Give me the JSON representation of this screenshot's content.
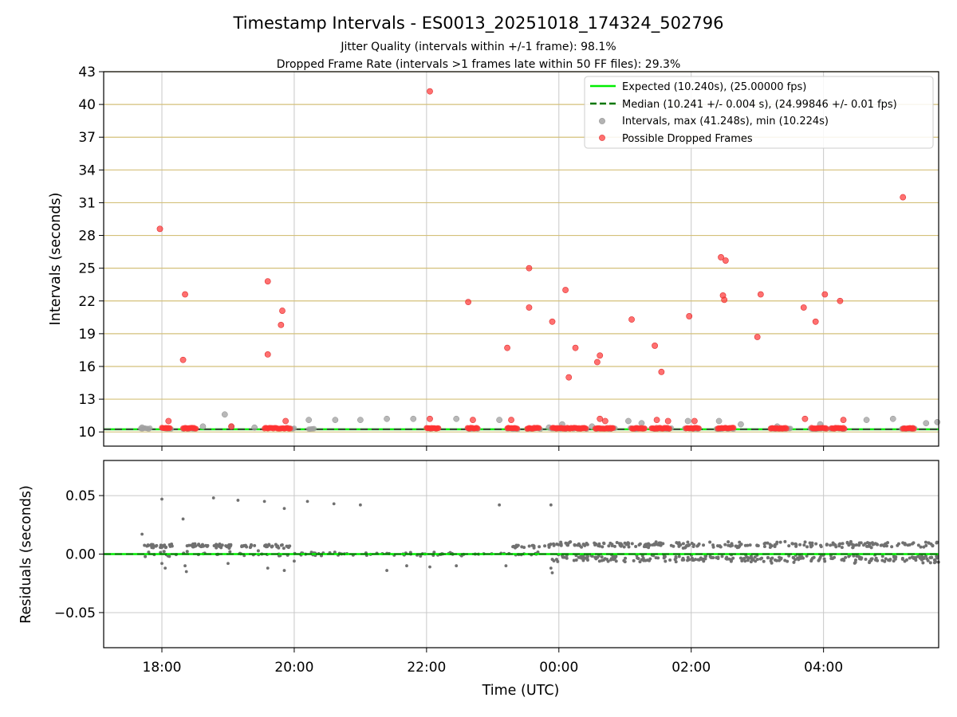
{
  "chart_data": {
    "type": "scatter",
    "title": "Timestamp Intervals - ES0013_20251018_174324_502796",
    "subtitles": [
      "Jitter Quality (intervals within +/-1 frame): 98.1%",
      "Dropped Frame Rate (intervals >1 frames late within 50 FF files): 29.3%"
    ],
    "xlabel": "Time (UTC)",
    "x_unit": "hours since 18:00 UTC",
    "x_range": [
      -0.88,
      11.74
    ],
    "x_ticks": [
      {
        "value": 0,
        "label": "18:00"
      },
      {
        "value": 2,
        "label": "20:00"
      },
      {
        "value": 4,
        "label": "22:00"
      },
      {
        "value": 6,
        "label": "00:00"
      },
      {
        "value": 8,
        "label": "02:00"
      },
      {
        "value": 10,
        "label": "04:00"
      }
    ],
    "colors": {
      "expected": "#00ee00",
      "median": "#007700",
      "intervals": "#a0a0a0",
      "dropped": "#ff3333",
      "residuals": "#707070",
      "gold_grid": "#d4c07a",
      "grey_grid": "#c8c8c8"
    },
    "top_panel": {
      "ylabel": "Intervals (seconds)",
      "ylim": [
        8.7,
        43
      ],
      "y_ticks": [
        10,
        13,
        16,
        19,
        22,
        25,
        28,
        31,
        34,
        37,
        40,
        43
      ],
      "expected_interval": 10.24,
      "median_interval": 10.241,
      "legend": {
        "placement": "top-right",
        "entries": [
          {
            "kind": "line-solid",
            "label": "Expected (10.240s), (25.00000 fps)"
          },
          {
            "kind": "line-dashed",
            "label": "Median (10.241 +/- 0.004 s), (24.99846 +/- 0.01 fps)"
          },
          {
            "kind": "dot-grey",
            "label": "Intervals, max (41.248s), min (10.224s)"
          },
          {
            "kind": "dot-red",
            "label": "Possible Dropped Frames"
          }
        ]
      },
      "baseline_level": 10.24,
      "baseline_clusters": [
        [
          -0.32,
          -0.18
        ],
        [
          0.0,
          0.14
        ],
        [
          0.32,
          0.52
        ],
        [
          1.92,
          2.0
        ],
        [
          2.22,
          2.32
        ],
        [
          4.0,
          4.18
        ],
        [
          4.62,
          4.78
        ],
        [
          5.22,
          5.38
        ],
        [
          5.52,
          5.72
        ],
        [
          5.88,
          6.42
        ],
        [
          6.55,
          6.85
        ],
        [
          7.08,
          7.3
        ],
        [
          7.4,
          7.7
        ],
        [
          7.9,
          8.12
        ],
        [
          8.38,
          8.65
        ],
        [
          9.2,
          9.5
        ],
        [
          9.8,
          10.05
        ],
        [
          10.1,
          10.32
        ],
        [
          11.18,
          11.38
        ]
      ],
      "dropped_clusters": [
        [
          0.0,
          0.12
        ],
        [
          0.32,
          0.52
        ],
        [
          1.55,
          1.95
        ],
        [
          4.0,
          4.18
        ],
        [
          4.62,
          4.78
        ],
        [
          5.22,
          5.38
        ],
        [
          5.52,
          5.7
        ],
        [
          5.9,
          6.42
        ],
        [
          6.55,
          6.82
        ],
        [
          7.1,
          7.3
        ],
        [
          7.4,
          7.68
        ],
        [
          7.92,
          8.12
        ],
        [
          8.4,
          8.65
        ],
        [
          9.2,
          9.45
        ],
        [
          9.82,
          10.05
        ],
        [
          10.12,
          10.32
        ],
        [
          11.2,
          11.38
        ]
      ],
      "intervals": [
        [
          -0.3,
          10.4
        ],
        [
          0.62,
          10.5
        ],
        [
          0.95,
          11.6
        ],
        [
          1.05,
          10.5
        ],
        [
          1.4,
          10.4
        ],
        [
          2.22,
          11.1
        ],
        [
          2.62,
          11.1
        ],
        [
          3.0,
          11.1
        ],
        [
          3.4,
          11.2
        ],
        [
          3.8,
          11.2
        ],
        [
          4.45,
          11.2
        ],
        [
          5.1,
          11.1
        ],
        [
          5.85,
          10.4
        ],
        [
          6.05,
          10.7
        ],
        [
          6.5,
          10.5
        ],
        [
          7.05,
          11.0
        ],
        [
          7.25,
          10.8
        ],
        [
          7.95,
          11.0
        ],
        [
          8.42,
          11.0
        ],
        [
          8.75,
          10.7
        ],
        [
          9.3,
          10.5
        ],
        [
          9.95,
          10.7
        ],
        [
          10.65,
          11.1
        ],
        [
          11.05,
          11.2
        ],
        [
          11.55,
          10.8
        ],
        [
          11.72,
          10.9
        ]
      ],
      "dropped_frames": [
        [
          -0.03,
          28.6
        ],
        [
          0.1,
          11.0
        ],
        [
          0.32,
          16.6
        ],
        [
          0.35,
          22.6
        ],
        [
          1.05,
          10.5
        ],
        [
          1.6,
          23.8
        ],
        [
          1.6,
          17.1
        ],
        [
          1.8,
          19.8
        ],
        [
          1.82,
          21.1
        ],
        [
          1.87,
          11.0
        ],
        [
          4.05,
          41.2
        ],
        [
          4.05,
          11.2
        ],
        [
          4.63,
          21.9
        ],
        [
          4.7,
          11.1
        ],
        [
          5.22,
          17.7
        ],
        [
          5.28,
          11.1
        ],
        [
          5.55,
          25.0
        ],
        [
          5.55,
          21.4
        ],
        [
          5.9,
          20.1
        ],
        [
          6.1,
          23.0
        ],
        [
          6.15,
          15.0
        ],
        [
          6.25,
          17.7
        ],
        [
          6.58,
          16.4
        ],
        [
          6.62,
          17.0
        ],
        [
          6.62,
          11.2
        ],
        [
          6.7,
          11.0
        ],
        [
          7.1,
          20.3
        ],
        [
          7.45,
          17.9
        ],
        [
          7.48,
          11.1
        ],
        [
          7.55,
          15.5
        ],
        [
          7.65,
          11.0
        ],
        [
          7.97,
          20.6
        ],
        [
          8.05,
          11.0
        ],
        [
          8.45,
          26.0
        ],
        [
          8.48,
          22.5
        ],
        [
          8.5,
          22.1
        ],
        [
          8.52,
          25.7
        ],
        [
          9.0,
          18.7
        ],
        [
          9.05,
          22.6
        ],
        [
          9.7,
          21.4
        ],
        [
          9.72,
          11.2
        ],
        [
          9.88,
          20.1
        ],
        [
          10.02,
          22.6
        ],
        [
          10.25,
          22.0
        ],
        [
          10.3,
          11.1
        ],
        [
          11.2,
          31.5
        ]
      ]
    },
    "bottom_panel": {
      "ylabel": "Residuals (seconds)",
      "ylim": [
        -0.08,
        0.08
      ],
      "y_ticks": [
        {
          "value": 0.05,
          "label": "0.05"
        },
        {
          "value": 0.0,
          "label": "0.00"
        },
        {
          "value": -0.05,
          "label": "−0.05"
        }
      ],
      "zero_line": 0.0,
      "residual_bands": [
        {
          "x_range": [
            -0.3,
            0.2
          ],
          "center": 0.007,
          "spread": 0.002,
          "n": 28
        },
        {
          "x_range": [
            0.3,
            0.7
          ],
          "center": 0.007,
          "spread": 0.002,
          "n": 22
        },
        {
          "x_range": [
            0.75,
            1.05
          ],
          "center": 0.007,
          "spread": 0.002,
          "n": 18
        },
        {
          "x_range": [
            1.2,
            1.45
          ],
          "center": 0.007,
          "spread": 0.002,
          "n": 14
        },
        {
          "x_range": [
            1.55,
            1.95
          ],
          "center": 0.007,
          "spread": 0.002,
          "n": 26
        },
        {
          "x_range": [
            -0.3,
            1.95
          ],
          "center": 0.0,
          "spread": 0.003,
          "n": 30
        },
        {
          "x_range": [
            2.0,
            5.8
          ],
          "center": 0.0,
          "spread": 0.002,
          "n": 70
        },
        {
          "x_range": [
            5.3,
            5.9
          ],
          "center": 0.007,
          "spread": 0.002,
          "n": 20
        },
        {
          "x_range": [
            5.9,
            11.74
          ],
          "center": 0.008,
          "spread": 0.003,
          "n": 240
        },
        {
          "x_range": [
            5.9,
            11.74
          ],
          "center": -0.004,
          "spread": 0.004,
          "n": 260
        }
      ],
      "residual_outliers": [
        [
          -0.3,
          0.017
        ],
        [
          0.0,
          0.047
        ],
        [
          0.32,
          0.03
        ],
        [
          0.78,
          0.048
        ],
        [
          1.15,
          0.046
        ],
        [
          1.55,
          0.045
        ],
        [
          1.85,
          0.039
        ],
        [
          2.2,
          0.045
        ],
        [
          2.6,
          0.043
        ],
        [
          3.0,
          0.042
        ],
        [
          5.1,
          0.042
        ],
        [
          5.88,
          0.042
        ],
        [
          0.0,
          -0.008
        ],
        [
          0.05,
          -0.012
        ],
        [
          0.35,
          -0.01
        ],
        [
          0.37,
          -0.015
        ],
        [
          1.0,
          -0.008
        ],
        [
          1.6,
          -0.012
        ],
        [
          1.85,
          -0.014
        ],
        [
          2.0,
          -0.006
        ],
        [
          3.4,
          -0.014
        ],
        [
          3.7,
          -0.01
        ],
        [
          4.05,
          -0.011
        ],
        [
          4.45,
          -0.01
        ],
        [
          5.2,
          -0.01
        ],
        [
          5.88,
          -0.012
        ],
        [
          5.9,
          -0.016
        ]
      ]
    }
  }
}
